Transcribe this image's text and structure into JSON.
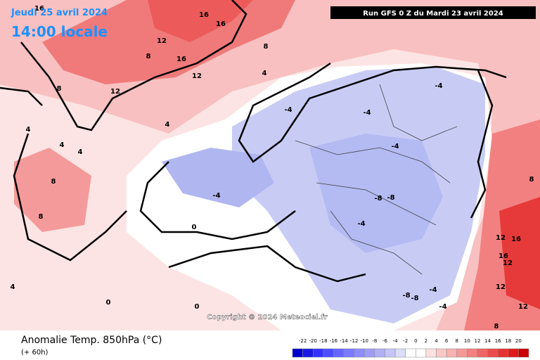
{
  "header": {
    "date": "Jeudi 25 avril 2024",
    "time": "14:00 locale",
    "run": "Run GFS 0 Z du Mardi 23 avril 2024"
  },
  "copyright": "Copyright © 2024 Meteociel.fr",
  "footer": {
    "title": "Anomalie Temp. 850hPa (°C)",
    "lead": "(+ 60h)"
  },
  "legend": {
    "ticks": [
      -22,
      -20,
      -18,
      -16,
      -14,
      -12,
      -10,
      -8,
      -6,
      -4,
      -2,
      0,
      2,
      4,
      6,
      8,
      10,
      12,
      14,
      16,
      18,
      20
    ],
    "colors": [
      "#0000cc",
      "#1a1ae6",
      "#3333ff",
      "#4d4dff",
      "#6666ff",
      "#7a7aff",
      "#8c8cff",
      "#9e9ef5",
      "#b0b0f5",
      "#c4c4f8",
      "#dcdcfb",
      "#ffffff",
      "#ffffff",
      "#fde0e0",
      "#fbc8c8",
      "#f8b0b0",
      "#f59898",
      "#f28080",
      "#ee6666",
      "#ea4c4c",
      "#e63232",
      "#e01a1a",
      "#cc0000"
    ]
  },
  "map_labels": [
    16,
    16,
    16,
    12,
    8,
    16,
    12,
    12,
    8,
    4,
    4,
    8,
    4,
    4,
    4,
    8,
    8,
    0,
    0,
    0,
    4,
    -4,
    -4,
    -4,
    -4,
    -4,
    -8,
    -8,
    -4,
    -8,
    -8,
    -4,
    -4,
    12,
    16,
    16,
    12,
    8,
    12,
    12,
    8
  ]
}
